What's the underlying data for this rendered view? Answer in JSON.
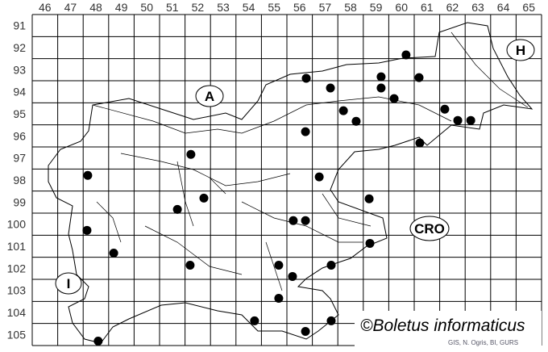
{
  "map": {
    "columns": [
      "46",
      "47",
      "48",
      "49",
      "50",
      "51",
      "52",
      "53",
      "54",
      "55",
      "56",
      "57",
      "58",
      "59",
      "60",
      "61",
      "62",
      "63",
      "64",
      "65"
    ],
    "rows": [
      "91",
      "92",
      "93",
      "94",
      "95",
      "96",
      "97",
      "98",
      "99",
      "100",
      "101",
      "102",
      "103",
      "104",
      "105"
    ],
    "country_labels": {
      "austria": "A",
      "hungary": "H",
      "croatia": "CRO",
      "italy": "I"
    },
    "copyright": "©Boletus informaticus",
    "credit": "GIS, N. Ogris, BI, GURS",
    "marker_color": "#000000",
    "records_grid_units": [
      [
        60.68,
        92.83
      ],
      [
        56.76,
        93.89
      ],
      [
        59.7,
        93.82
      ],
      [
        61.19,
        93.86
      ],
      [
        57.71,
        94.33
      ],
      [
        59.7,
        94.33
      ],
      [
        60.21,
        94.81
      ],
      [
        58.22,
        95.36
      ],
      [
        62.2,
        95.29
      ],
      [
        58.72,
        95.84
      ],
      [
        62.71,
        95.8
      ],
      [
        63.22,
        95.8
      ],
      [
        56.73,
        96.31
      ],
      [
        61.22,
        96.82
      ],
      [
        52.23,
        97.34
      ],
      [
        48.18,
        98.29
      ],
      [
        57.27,
        98.36
      ],
      [
        52.74,
        99.32
      ],
      [
        51.7,
        99.83
      ],
      [
        59.23,
        99.35
      ],
      [
        56.25,
        100.34
      ],
      [
        56.73,
        100.34
      ],
      [
        48.15,
        100.78
      ],
      [
        59.26,
        101.37
      ],
      [
        49.2,
        101.81
      ],
      [
        52.2,
        102.36
      ],
      [
        55.68,
        102.36
      ],
      [
        57.74,
        102.36
      ],
      [
        56.22,
        102.87
      ],
      [
        55.68,
        103.86
      ],
      [
        54.73,
        104.88
      ],
      [
        57.74,
        104.88
      ],
      [
        56.73,
        105.36
      ],
      [
        48.59,
        105.8
      ]
    ]
  }
}
